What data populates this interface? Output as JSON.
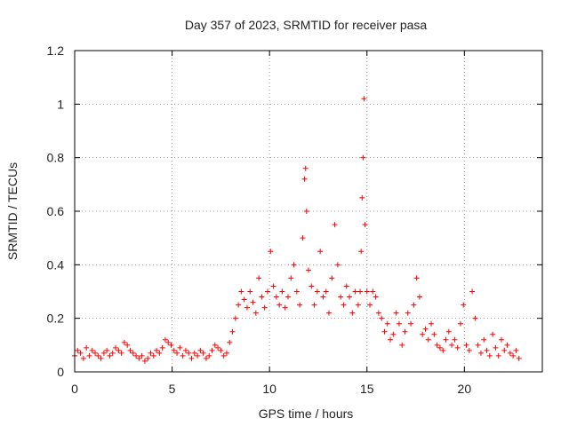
{
  "chart_data": {
    "type": "scatter",
    "title": "Day 357 of 2023, SRMTID for receiver pasa",
    "xlabel": "GPS time / hours",
    "ylabel": "SRMTID / TECUs",
    "xlim": [
      0,
      24
    ],
    "ylim": [
      0,
      1.2
    ],
    "xticks": [
      0,
      5,
      10,
      15,
      20
    ],
    "xtick_labels": [
      "0",
      "5",
      "10",
      "15",
      "20"
    ],
    "yticks": [
      0,
      0.2,
      0.4,
      0.6,
      0.8,
      1.0,
      1.2
    ],
    "ytick_labels": [
      "0",
      "0.2",
      "0.4",
      "0.6",
      "0.8",
      "1",
      "1.2"
    ],
    "grid": true,
    "marker": "plus",
    "color": "#ff0000",
    "series": [
      {
        "name": "SRMTID",
        "x": [
          0.0,
          0.15,
          0.3,
          0.45,
          0.6,
          0.75,
          0.9,
          1.05,
          1.2,
          1.35,
          1.5,
          1.65,
          1.8,
          1.95,
          2.1,
          2.25,
          2.4,
          2.55,
          2.7,
          2.85,
          3.0,
          3.15,
          3.3,
          3.45,
          3.6,
          3.75,
          3.9,
          4.05,
          4.2,
          4.35,
          4.5,
          4.65,
          4.8,
          4.95,
          5.1,
          5.25,
          5.4,
          5.55,
          5.7,
          5.85,
          6.0,
          6.15,
          6.3,
          6.45,
          6.6,
          6.75,
          6.9,
          7.05,
          7.2,
          7.35,
          7.5,
          7.65,
          7.8,
          7.95,
          8.1,
          8.25,
          8.4,
          8.55,
          8.7,
          8.85,
          9.0,
          9.15,
          9.3,
          9.45,
          9.6,
          9.75,
          9.9,
          10.05,
          10.2,
          10.35,
          10.5,
          10.65,
          10.8,
          10.95,
          11.1,
          11.25,
          11.4,
          11.55,
          11.7,
          11.8,
          11.85,
          11.9,
          12.0,
          12.15,
          12.3,
          12.45,
          12.6,
          12.75,
          12.9,
          13.05,
          13.2,
          13.35,
          13.5,
          13.65,
          13.8,
          13.95,
          14.1,
          14.25,
          14.4,
          14.55,
          14.65,
          14.7,
          14.75,
          14.8,
          14.85,
          14.9,
          15.0,
          15.15,
          15.3,
          15.45,
          15.6,
          15.75,
          15.9,
          16.05,
          16.2,
          16.35,
          16.5,
          16.65,
          16.8,
          16.95,
          17.1,
          17.25,
          17.4,
          17.55,
          17.7,
          17.85,
          18.0,
          18.15,
          18.3,
          18.45,
          18.6,
          18.75,
          18.9,
          19.05,
          19.2,
          19.35,
          19.5,
          19.65,
          19.8,
          19.95,
          20.1,
          20.25,
          20.4,
          20.55,
          20.7,
          20.85,
          21.0,
          21.15,
          21.3,
          21.45,
          21.6,
          21.75,
          21.9,
          22.05,
          22.2,
          22.35,
          22.5,
          22.65,
          22.8
        ],
        "y": [
          0.06,
          0.08,
          0.07,
          0.05,
          0.09,
          0.06,
          0.08,
          0.07,
          0.06,
          0.05,
          0.07,
          0.08,
          0.06,
          0.07,
          0.09,
          0.08,
          0.07,
          0.11,
          0.1,
          0.08,
          0.07,
          0.06,
          0.05,
          0.06,
          0.04,
          0.05,
          0.07,
          0.06,
          0.08,
          0.07,
          0.09,
          0.12,
          0.11,
          0.1,
          0.08,
          0.07,
          0.09,
          0.06,
          0.08,
          0.07,
          0.05,
          0.07,
          0.06,
          0.08,
          0.07,
          0.05,
          0.06,
          0.08,
          0.1,
          0.09,
          0.08,
          0.06,
          0.07,
          0.11,
          0.15,
          0.2,
          0.25,
          0.3,
          0.27,
          0.24,
          0.3,
          0.26,
          0.22,
          0.35,
          0.28,
          0.24,
          0.3,
          0.45,
          0.32,
          0.28,
          0.25,
          0.3,
          0.24,
          0.28,
          0.35,
          0.4,
          0.3,
          0.25,
          0.5,
          0.72,
          0.76,
          0.6,
          0.38,
          0.32,
          0.25,
          0.3,
          0.45,
          0.28,
          0.3,
          0.22,
          0.35,
          0.55,
          0.4,
          0.28,
          0.25,
          0.32,
          0.28,
          0.22,
          0.3,
          0.25,
          0.3,
          0.45,
          0.65,
          0.8,
          1.02,
          0.55,
          0.3,
          0.25,
          0.3,
          0.28,
          0.22,
          0.2,
          0.15,
          0.18,
          0.12,
          0.14,
          0.22,
          0.18,
          0.1,
          0.15,
          0.22,
          0.18,
          0.25,
          0.35,
          0.28,
          0.14,
          0.16,
          0.12,
          0.18,
          0.14,
          0.1,
          0.09,
          0.08,
          0.12,
          0.15,
          0.1,
          0.12,
          0.09,
          0.18,
          0.25,
          0.1,
          0.08,
          0.3,
          0.2,
          0.1,
          0.07,
          0.12,
          0.08,
          0.06,
          0.14,
          0.09,
          0.06,
          0.12,
          0.08,
          0.1,
          0.07,
          0.06,
          0.08,
          0.05
        ]
      }
    ]
  }
}
